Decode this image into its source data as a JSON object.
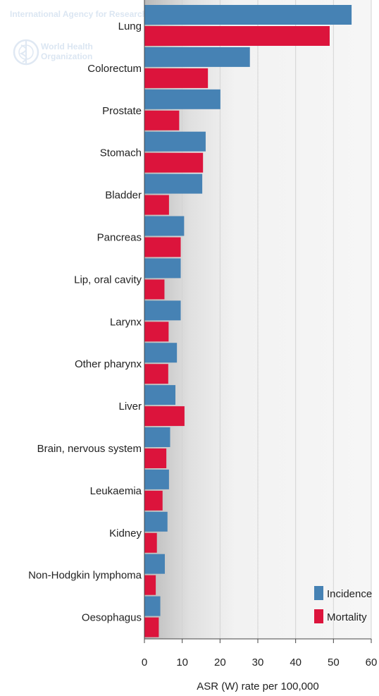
{
  "watermark": {
    "agency": "International Agency for Research on",
    "org_line1": "World Health",
    "org_line2": "Organization"
  },
  "colors": {
    "incidence": "#4682b4",
    "mortality": "#dc143c"
  },
  "chart_data": {
    "type": "bar",
    "orientation": "horizontal",
    "categories": [
      "Lung",
      "Colorectum",
      "Prostate",
      "Stomach",
      "Bladder",
      "Pancreas",
      "Lip, oral cavity",
      "Larynx",
      "Other pharynx",
      "Liver",
      "Brain, nervous system",
      "Leukaemia",
      "Kidney",
      "Non-Hodgkin lymphoma",
      "Oesophagus"
    ],
    "series": [
      {
        "name": "Incidence",
        "values": [
          54.8,
          27.9,
          20.1,
          16.2,
          15.3,
          10.5,
          9.6,
          9.6,
          8.6,
          8.2,
          6.8,
          6.5,
          6.1,
          5.4,
          4.2
        ]
      },
      {
        "name": "Mortality",
        "values": [
          49.0,
          16.8,
          9.2,
          15.5,
          6.5,
          9.6,
          5.3,
          6.4,
          6.3,
          10.6,
          5.8,
          4.8,
          3.3,
          3.0,
          3.8
        ]
      }
    ],
    "xlabel": "ASR (W) rate per 100,000",
    "ylabel": "",
    "xlim": [
      0,
      60
    ],
    "xticks": [
      "0",
      "10",
      "20",
      "30",
      "40",
      "50",
      "60"
    ],
    "grid": "vertical",
    "legend": "bottom-right"
  }
}
